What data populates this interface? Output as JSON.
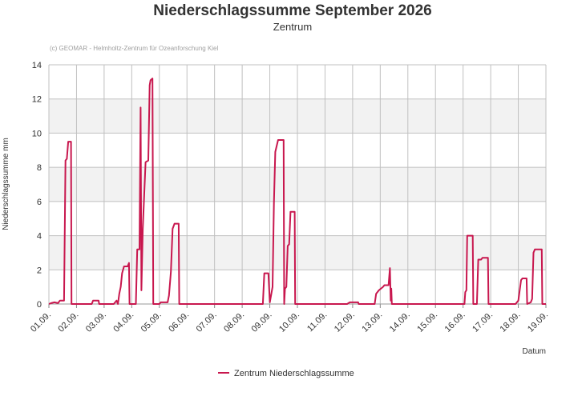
{
  "chart_data": {
    "type": "line",
    "title": "Niederschlagssumme September 2026",
    "subtitle": "Zentrum",
    "credit": "(c) GEOMAR - Helmholtz-Zentrum für Ozeanforschung Kiel",
    "xlabel": "Datum",
    "ylabel": "Niederschlagssumme mm",
    "x_tick_labels": [
      "01.09.",
      "02.09.",
      "03.09.",
      "04.09.",
      "05.09.",
      "06.09.",
      "07.09.",
      "08.09.",
      "09.09.",
      "10.09.",
      "11.09.",
      "12.09.",
      "13.09.",
      "14.09.",
      "15.09.",
      "16.09.",
      "17.09.",
      "18.09.",
      "19.09."
    ],
    "y_ticks": [
      0,
      2,
      4,
      6,
      8,
      10,
      12,
      14
    ],
    "xlim": [
      0,
      18
    ],
    "ylim": [
      0,
      14
    ],
    "grid": true,
    "alternating_bands": true,
    "legend_position": "bottom-center",
    "colors": {
      "series": "#c8174e",
      "grid": "#c0c0c0",
      "band": "#f2f2f2"
    },
    "series": [
      {
        "name": "Zentrum Niederschlagssumme",
        "points": [
          [
            0.0,
            0.0
          ],
          [
            0.08,
            0.05
          ],
          [
            0.2,
            0.1
          ],
          [
            0.33,
            0.05
          ],
          [
            0.4,
            0.2
          ],
          [
            0.55,
            0.2
          ],
          [
            0.6,
            8.4
          ],
          [
            0.65,
            8.5
          ],
          [
            0.7,
            9.5
          ],
          [
            0.8,
            9.5
          ],
          [
            0.82,
            0.0
          ],
          [
            1.55,
            0.0
          ],
          [
            1.6,
            0.2
          ],
          [
            1.8,
            0.2
          ],
          [
            1.82,
            0.0
          ],
          [
            2.35,
            0.0
          ],
          [
            2.45,
            0.2
          ],
          [
            2.5,
            0.0
          ],
          [
            2.55,
            0.6
          ],
          [
            2.6,
            1.0
          ],
          [
            2.65,
            1.8
          ],
          [
            2.72,
            2.2
          ],
          [
            2.85,
            2.2
          ],
          [
            2.9,
            2.4
          ],
          [
            2.92,
            0.0
          ],
          [
            3.15,
            0.0
          ],
          [
            3.2,
            3.2
          ],
          [
            3.28,
            3.2
          ],
          [
            3.32,
            11.5
          ],
          [
            3.35,
            0.8
          ],
          [
            3.4,
            4.4
          ],
          [
            3.5,
            8.3
          ],
          [
            3.6,
            8.4
          ],
          [
            3.65,
            12.8
          ],
          [
            3.68,
            13.1
          ],
          [
            3.75,
            13.2
          ],
          [
            3.78,
            0.0
          ],
          [
            4.0,
            0.0
          ],
          [
            4.05,
            0.1
          ],
          [
            4.3,
            0.1
          ],
          [
            4.35,
            0.5
          ],
          [
            4.42,
            1.9
          ],
          [
            4.48,
            4.4
          ],
          [
            4.55,
            4.7
          ],
          [
            4.7,
            4.7
          ],
          [
            4.72,
            0.0
          ],
          [
            7.75,
            0.0
          ],
          [
            7.8,
            1.8
          ],
          [
            7.95,
            1.8
          ],
          [
            8.0,
            0.1
          ],
          [
            8.1,
            1.0
          ],
          [
            8.15,
            5.9
          ],
          [
            8.2,
            8.9
          ],
          [
            8.3,
            9.6
          ],
          [
            8.5,
            9.6
          ],
          [
            8.52,
            0.0
          ],
          [
            8.55,
            0.9
          ],
          [
            8.6,
            1.0
          ],
          [
            8.65,
            3.4
          ],
          [
            8.7,
            3.5
          ],
          [
            8.75,
            5.4
          ],
          [
            8.9,
            5.4
          ],
          [
            8.92,
            0.0
          ],
          [
            10.8,
            0.0
          ],
          [
            10.9,
            0.1
          ],
          [
            11.2,
            0.1
          ],
          [
            11.22,
            0.0
          ],
          [
            11.8,
            0.0
          ],
          [
            11.85,
            0.6
          ],
          [
            11.95,
            0.8
          ],
          [
            12.1,
            1.0
          ],
          [
            12.15,
            1.1
          ],
          [
            12.3,
            1.1
          ],
          [
            12.35,
            2.1
          ],
          [
            12.38,
            0.2
          ],
          [
            12.4,
            0.9
          ],
          [
            12.42,
            0.0
          ],
          [
            15.05,
            0.0
          ],
          [
            15.08,
            0.7
          ],
          [
            15.12,
            0.8
          ],
          [
            15.15,
            4.0
          ],
          [
            15.35,
            4.0
          ],
          [
            15.37,
            0.0
          ],
          [
            15.5,
            0.0
          ],
          [
            15.55,
            2.6
          ],
          [
            15.65,
            2.6
          ],
          [
            15.7,
            2.7
          ],
          [
            15.9,
            2.7
          ],
          [
            15.92,
            0.0
          ],
          [
            16.9,
            0.0
          ],
          [
            16.95,
            0.1
          ],
          [
            17.0,
            0.2
          ],
          [
            17.1,
            1.4
          ],
          [
            17.15,
            1.5
          ],
          [
            17.3,
            1.5
          ],
          [
            17.32,
            0.0
          ],
          [
            17.45,
            0.1
          ],
          [
            17.5,
            0.3
          ],
          [
            17.55,
            3.0
          ],
          [
            17.6,
            3.2
          ],
          [
            17.85,
            3.2
          ],
          [
            17.87,
            0.0
          ],
          [
            18.0,
            0.0
          ]
        ]
      }
    ]
  }
}
